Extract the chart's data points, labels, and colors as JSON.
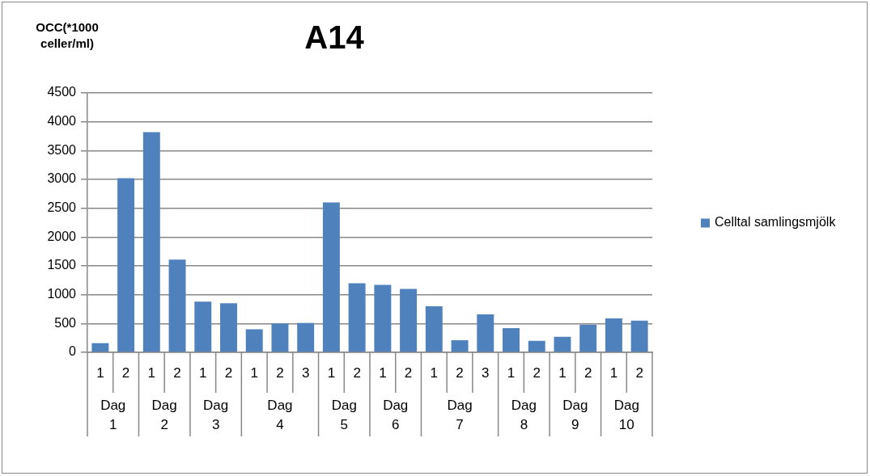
{
  "chart_data": {
    "type": "bar",
    "title": "A14",
    "ylabel": "OCC(*1000 celler/ml)",
    "categories": [
      "1",
      "2",
      "1",
      "2",
      "1",
      "2",
      "1",
      "2",
      "3",
      "1",
      "2",
      "1",
      "2",
      "1",
      "2",
      "3",
      "1",
      "2",
      "1",
      "2",
      "1",
      "2"
    ],
    "annotations": [
      "Dag 1",
      "Dag 2",
      "Dag 3",
      "Dag 4",
      "Dag 5",
      "Dag 6",
      "Dag 7",
      "Dag 8",
      "Dag 9",
      "Dag 10"
    ],
    "series": [
      {
        "name": "Celltal samlingsmjölk",
        "color": "#4f81bd",
        "values": [
          160,
          3020,
          3820,
          1610,
          880,
          850,
          400,
          500,
          510,
          2600,
          1200,
          1170,
          1100,
          800,
          210,
          660,
          420,
          200,
          270,
          480,
          590,
          550
        ]
      }
    ],
    "ylim": [
      0,
      4500
    ],
    "yticks": [
      0,
      500,
      1000,
      1500,
      2000,
      2500,
      3000,
      3500,
      4000,
      4500
    ],
    "grid": "y",
    "legend": "right"
  }
}
